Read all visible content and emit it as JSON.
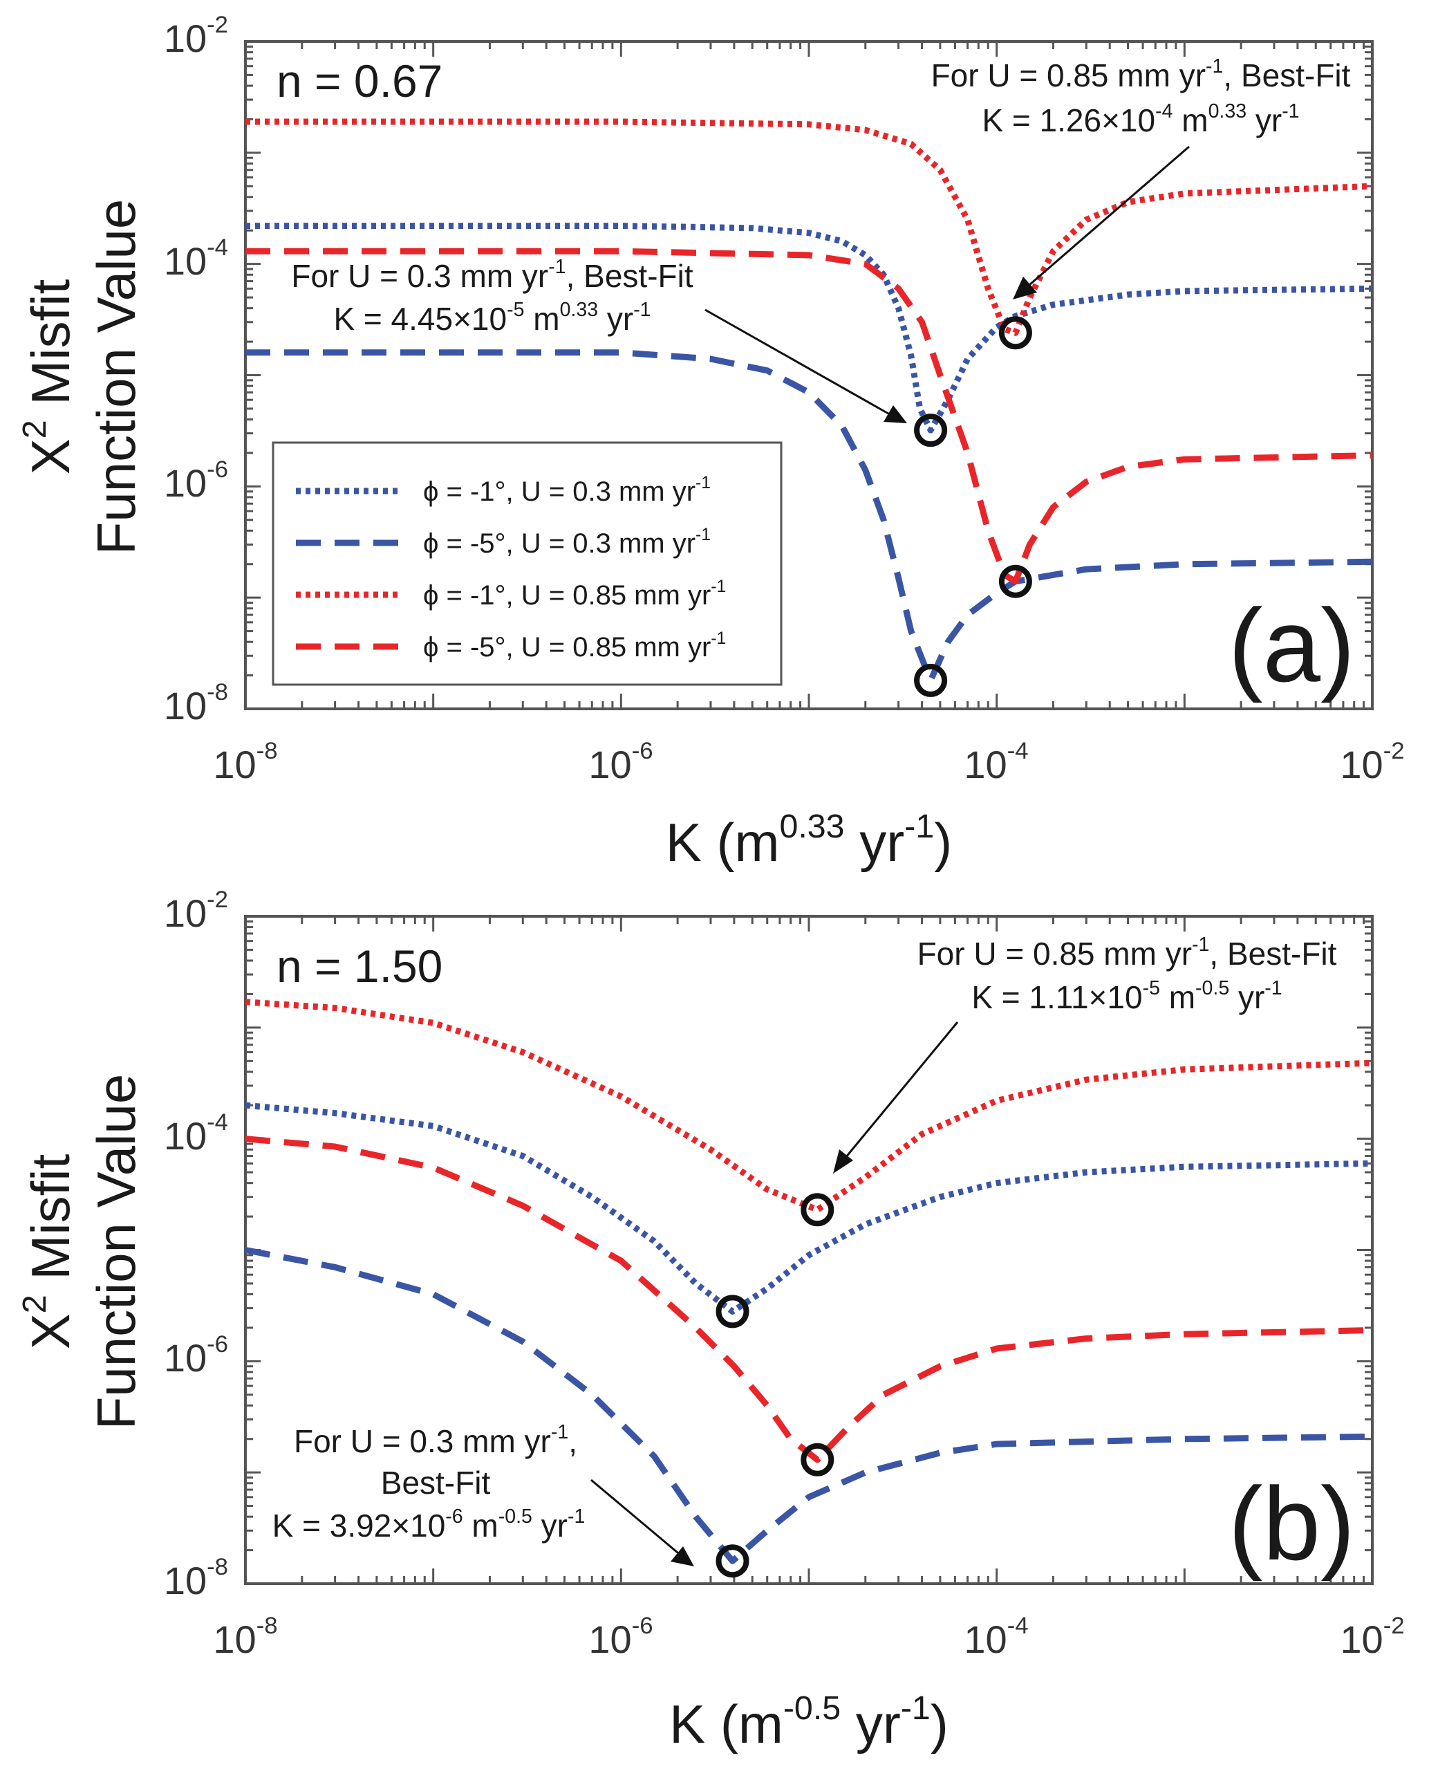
{
  "chart_data": [
    {
      "type": "line",
      "panel_label": "(a)",
      "n_label": "n = 0.67",
      "xlabel": "K (m^0.33 yr^-1)",
      "ylabel_line1": "X² Misfit",
      "ylabel_line2": "Function Value",
      "x_scale": "log",
      "y_scale": "log",
      "xlim": [
        1e-08,
        0.01
      ],
      "ylim": [
        1e-08,
        0.01
      ],
      "x_ticks": [
        1e-08,
        1e-06,
        0.0001,
        0.01
      ],
      "y_ticks": [
        1e-08,
        1e-06,
        0.0001,
        0.01
      ],
      "grid": false,
      "legend_position": "bottom-left",
      "series": [
        {
          "name": "ϕ = -1°, U = 0.3 mm yr-1",
          "color": "#3a55a4",
          "style": "dotted",
          "points": [
            [
              1e-08,
              0.00022
            ],
            [
              1e-06,
              0.00022
            ],
            [
              5e-06,
              0.00021
            ],
            [
              1e-05,
              0.00019
            ],
            [
              1.5e-05,
              0.00016
            ],
            [
              2e-05,
              0.00012
            ],
            [
              2.5e-05,
              8e-05
            ],
            [
              3e-05,
              4e-05
            ],
            [
              3.5e-05,
              1.5e-05
            ],
            [
              3.9e-05,
              5e-06
            ],
            [
              4.45e-05,
              3.2e-06
            ],
            [
              5.5e-05,
              6e-06
            ],
            [
              7e-05,
              1.4e-05
            ],
            [
              0.0001,
              2.7e-05
            ],
            [
              0.000126,
              3.4e-05
            ],
            [
              0.0002,
              4.3e-05
            ],
            [
              0.0005,
              5.3e-05
            ],
            [
              0.001,
              5.7e-05
            ],
            [
              0.01,
              6e-05
            ]
          ]
        },
        {
          "name": "ϕ = -5°, U = 0.3 mm yr-1",
          "color": "#3a55a4",
          "style": "dashed",
          "points": [
            [
              1e-08,
              1.6e-05
            ],
            [
              1e-06,
              1.6e-05
            ],
            [
              3e-06,
              1.4e-05
            ],
            [
              6e-06,
              1.1e-05
            ],
            [
              1e-05,
              7e-06
            ],
            [
              1.5e-05,
              3.5e-06
            ],
            [
              2e-05,
              1.4e-06
            ],
            [
              2.5e-05,
              5e-07
            ],
            [
              3e-05,
              1.5e-07
            ],
            [
              3.5e-05,
              5e-08
            ],
            [
              4.45e-05,
              1.8e-08
            ],
            [
              5.5e-05,
              4e-08
            ],
            [
              7e-05,
              7e-08
            ],
            [
              0.0001,
              1.1e-07
            ],
            [
              0.000126,
              1.4e-07
            ],
            [
              0.0003,
              1.8e-07
            ],
            [
              0.001,
              2e-07
            ],
            [
              0.01,
              2.1e-07
            ]
          ]
        },
        {
          "name": "ϕ = -1°, U = 0.85 mm yr-1",
          "color": "#e8262a",
          "style": "dotted",
          "points": [
            [
              1e-08,
              0.0019
            ],
            [
              1e-06,
              0.0019
            ],
            [
              1e-05,
              0.0018
            ],
            [
              2e-05,
              0.0016
            ],
            [
              3.5e-05,
              0.0012
            ],
            [
              5e-05,
              0.0007
            ],
            [
              7e-05,
              0.00025
            ],
            [
              9e-05,
              6e-05
            ],
            [
              0.00011,
              2.6e-05
            ],
            [
              0.000126,
              2.4e-05
            ],
            [
              0.00015,
              5e-05
            ],
            [
              0.0002,
              0.00013
            ],
            [
              0.0003,
              0.00025
            ],
            [
              0.0005,
              0.00036
            ],
            [
              0.001,
              0.00043
            ],
            [
              0.01,
              0.0005
            ]
          ]
        },
        {
          "name": "ϕ = -5°, U = 0.85 mm yr-1",
          "color": "#e8262a",
          "style": "dashed",
          "points": [
            [
              1e-08,
              0.00013
            ],
            [
              1e-06,
              0.00013
            ],
            [
              1e-05,
              0.00012
            ],
            [
              2e-05,
              0.0001
            ],
            [
              3e-05,
              6e-05
            ],
            [
              4e-05,
              3e-05
            ],
            [
              5e-05,
              1e-05
            ],
            [
              7e-05,
              2e-06
            ],
            [
              9e-05,
              4e-07
            ],
            [
              0.00011,
              1.6e-07
            ],
            [
              0.000126,
              1.4e-07
            ],
            [
              0.00015,
              3e-07
            ],
            [
              0.0002,
              6.5e-07
            ],
            [
              0.0003,
              1.1e-06
            ],
            [
              0.0005,
              1.5e-06
            ],
            [
              0.001,
              1.75e-06
            ],
            [
              0.01,
              1.9e-06
            ]
          ]
        }
      ],
      "markers": [
        [
          4.45e-05,
          3.2e-06
        ],
        [
          0.000126,
          2.4e-05
        ],
        [
          4.45e-05,
          1.8e-08
        ],
        [
          0.000126,
          1.4e-07
        ]
      ],
      "annotations": [
        {
          "lines": [
            "For U = 0.85 mm yr-1, Best-Fit",
            "K = 1.26×10-4 m0.33 yr-1"
          ],
          "target": [
            0.000126,
            2.4e-05
          ]
        },
        {
          "lines": [
            "For U = 0.3 mm yr-1, Best-Fit",
            "K = 4.45×10-5 m0.33 yr-1"
          ],
          "target": [
            4.45e-05,
            3.2e-06
          ]
        }
      ]
    },
    {
      "type": "line",
      "panel_label": "(b)",
      "n_label": "n = 1.50",
      "xlabel": "K (m^-0.5 yr^-1)",
      "ylabel_line1": "X² Misfit",
      "ylabel_line2": "Function Value",
      "x_scale": "log",
      "y_scale": "log",
      "xlim": [
        1e-08,
        0.01
      ],
      "ylim": [
        1e-08,
        0.01
      ],
      "x_ticks": [
        1e-08,
        1e-06,
        0.0001,
        0.01
      ],
      "y_ticks": [
        1e-08,
        1e-06,
        0.0001,
        0.01
      ],
      "grid": false,
      "series": [
        {
          "name": "ϕ = -1°, U = 0.3 mm yr-1",
          "color": "#3a55a4",
          "style": "dotted",
          "points": [
            [
              1e-08,
              0.0002
            ],
            [
              3e-08,
              0.00017
            ],
            [
              1e-07,
              0.00013
            ],
            [
              3e-07,
              7e-05
            ],
            [
              7e-07,
              3e-05
            ],
            [
              1.5e-06,
              1.2e-05
            ],
            [
              2.5e-06,
              5e-06
            ],
            [
              3.92e-06,
              2.8e-06
            ],
            [
              6e-06,
              4.5e-06
            ],
            [
              1e-05,
              9e-06
            ],
            [
              2e-05,
              1.7e-05
            ],
            [
              5e-05,
              3e-05
            ],
            [
              0.0001,
              4e-05
            ],
            [
              0.0003,
              5e-05
            ],
            [
              0.001,
              5.6e-05
            ],
            [
              0.01,
              6e-05
            ]
          ]
        },
        {
          "name": "ϕ = -5°, U = 0.3 mm yr-1",
          "color": "#3a55a4",
          "style": "dashed",
          "points": [
            [
              1e-08,
              1e-05
            ],
            [
              3e-08,
              7e-06
            ],
            [
              1e-07,
              4e-06
            ],
            [
              3e-07,
              1.5e-06
            ],
            [
              7e-07,
              5e-07
            ],
            [
              1.5e-06,
              1.4e-07
            ],
            [
              2.5e-06,
              4e-08
            ],
            [
              3.92e-06,
              1.6e-08
            ],
            [
              6e-06,
              3e-08
            ],
            [
              1e-05,
              6e-08
            ],
            [
              2e-05,
              1e-07
            ],
            [
              5e-05,
              1.5e-07
            ],
            [
              0.0001,
              1.8e-07
            ],
            [
              0.001,
              2e-07
            ],
            [
              0.01,
              2.1e-07
            ]
          ]
        },
        {
          "name": "ϕ = -1°, U = 0.85 mm yr-1",
          "color": "#e8262a",
          "style": "dotted",
          "points": [
            [
              1e-08,
              0.0017
            ],
            [
              3e-08,
              0.0015
            ],
            [
              1e-07,
              0.0011
            ],
            [
              3e-07,
              0.0006
            ],
            [
              1e-06,
              0.00024
            ],
            [
              3e-06,
              8e-05
            ],
            [
              6e-06,
              3.5e-05
            ],
            [
              1.11e-05,
              2.3e-05
            ],
            [
              2e-05,
              4.5e-05
            ],
            [
              4e-05,
              0.00011
            ],
            [
              0.0001,
              0.00022
            ],
            [
              0.0003,
              0.00034
            ],
            [
              0.001,
              0.00042
            ],
            [
              0.01,
              0.00048
            ]
          ]
        },
        {
          "name": "ϕ = -5°, U = 0.85 mm yr-1",
          "color": "#e8262a",
          "style": "dashed",
          "points": [
            [
              1e-08,
              0.0001
            ],
            [
              3e-08,
              8.5e-05
            ],
            [
              1e-07,
              5.5e-05
            ],
            [
              3e-07,
              2.5e-05
            ],
            [
              1e-06,
              8e-06
            ],
            [
              2.5e-06,
              2e-06
            ],
            [
              4e-06,
              9e-07
            ],
            [
              6e-06,
              4e-07
            ],
            [
              8e-06,
              2e-07
            ],
            [
              1.11e-05,
              1.3e-07
            ],
            [
              1.6e-05,
              2.5e-07
            ],
            [
              2.5e-05,
              5e-07
            ],
            [
              5e-05,
              9e-07
            ],
            [
              0.0001,
              1.3e-06
            ],
            [
              0.0003,
              1.6e-06
            ],
            [
              0.001,
              1.75e-06
            ],
            [
              0.01,
              1.9e-06
            ]
          ]
        }
      ],
      "markers": [
        [
          3.92e-06,
          2.8e-06
        ],
        [
          1.11e-05,
          2.3e-05
        ],
        [
          3.92e-06,
          1.6e-08
        ],
        [
          1.11e-05,
          1.3e-07
        ]
      ],
      "annotations": [
        {
          "lines": [
            "For U = 0.85 mm yr-1, Best-Fit",
            "K = 1.11×10-5 m-0.5 yr-1"
          ],
          "target": [
            1.11e-05,
            2.3e-05
          ]
        },
        {
          "lines": [
            "For U = 0.3 mm yr-1,",
            "Best-Fit",
            "K = 3.92×10-6 m-0.5 yr-1"
          ],
          "target": [
            3.92e-06,
            1.6e-08
          ]
        }
      ]
    }
  ]
}
